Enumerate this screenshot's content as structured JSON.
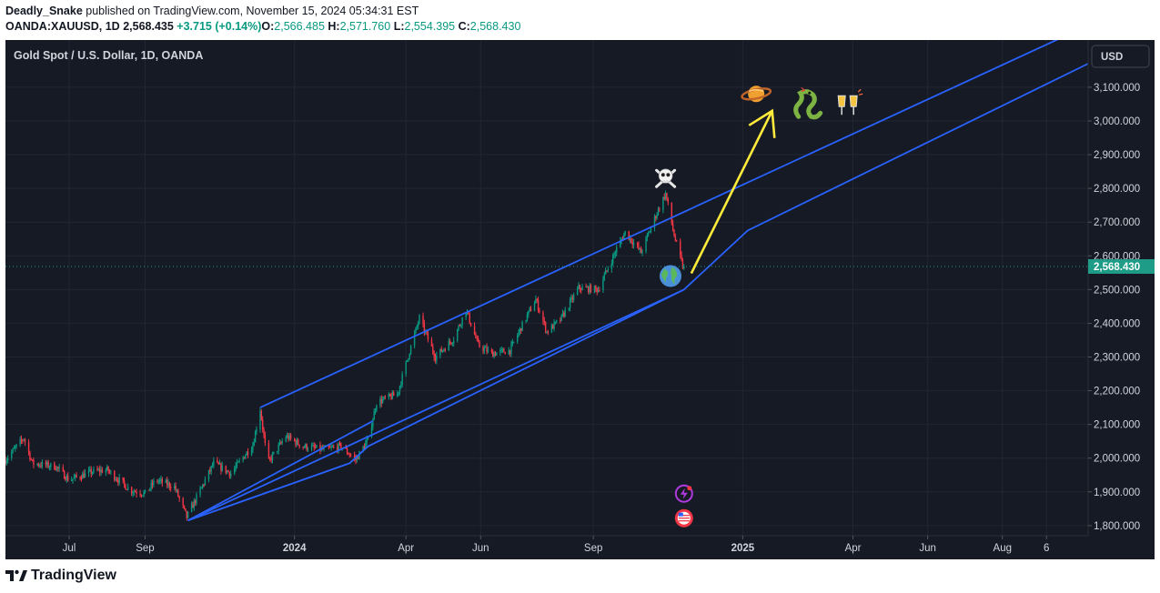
{
  "header": {
    "author": "Deadly_Snake",
    "published_text": "published on TradingView.com, November 15, 2024 05:34:31 EST",
    "symbol": "OANDA:XAUUSD, 1D",
    "price": "2,568.435",
    "change": "+3.715 (+0.14%)",
    "open_label": "O:",
    "open": "2,566.485",
    "high_label": "H:",
    "high": "2,571.760",
    "low_label": "L:",
    "low": "2,554.395",
    "close_label": "C:",
    "close": "2,568.430"
  },
  "chart_data": {
    "type": "candlestick",
    "title": "Gold Spot / U.S. Dollar, 1D, OANDA",
    "currency": "USD",
    "last_price_label": "2,568.430",
    "last_price": 2568.43,
    "y_ticks": [
      "1,800.000",
      "1,900.000",
      "2,000.000",
      "2,100.000",
      "2,200.000",
      "2,300.000",
      "2,400.000",
      "2,500.000",
      "2,600.000",
      "2,700.000",
      "2,800.000",
      "2,900.000",
      "3,000.000",
      "3,100.000"
    ],
    "y_tick_values": [
      1800,
      1900,
      2000,
      2100,
      2200,
      2300,
      2400,
      2500,
      2600,
      2700,
      2800,
      2900,
      3000,
      3100
    ],
    "x_ticks": [
      "Jul",
      "Sep",
      "2024",
      "Apr",
      "Jun",
      "Sep",
      "2025",
      "Apr",
      "Jun",
      "Aug",
      "6"
    ],
    "x_tick_dates": [
      "2023-07-01",
      "2023-09-01",
      "2024-01-01",
      "2024-04-01",
      "2024-06-01",
      "2024-09-01",
      "2025-01-01",
      "2025-04-01",
      "2025-06-01",
      "2025-08-01",
      "2025-09-06"
    ],
    "date_range": [
      "2023-05-10",
      "2025-10-10"
    ],
    "price_range": [
      1770,
      3240
    ],
    "price_path": [
      [
        "2023-05-10",
        1995
      ],
      [
        "2023-05-25",
        2060
      ],
      [
        "2023-06-01",
        1985
      ],
      [
        "2023-06-20",
        1975
      ],
      [
        "2023-07-01",
        1935
      ],
      [
        "2023-07-20",
        1960
      ],
      [
        "2023-08-01",
        1965
      ],
      [
        "2023-08-20",
        1905
      ],
      [
        "2023-09-01",
        1895
      ],
      [
        "2023-09-10",
        1935
      ],
      [
        "2023-09-25",
        1915
      ],
      [
        "2023-10-05",
        1825
      ],
      [
        "2023-10-12",
        1875
      ],
      [
        "2023-10-27",
        1985
      ],
      [
        "2023-11-10",
        1955
      ],
      [
        "2023-11-28",
        2040
      ],
      [
        "2023-12-04",
        2145
      ],
      [
        "2023-12-10",
        1985
      ],
      [
        "2023-12-25",
        2065
      ],
      [
        "2024-01-08",
        2035
      ],
      [
        "2024-01-25",
        2025
      ],
      [
        "2024-02-08",
        2035
      ],
      [
        "2024-02-20",
        1995
      ],
      [
        "2024-03-01",
        2055
      ],
      [
        "2024-03-08",
        2165
      ],
      [
        "2024-03-25",
        2190
      ],
      [
        "2024-04-05",
        2330
      ],
      [
        "2024-04-12",
        2415
      ],
      [
        "2024-04-25",
        2300
      ],
      [
        "2024-05-10",
        2355
      ],
      [
        "2024-05-20",
        2440
      ],
      [
        "2024-05-30",
        2335
      ],
      [
        "2024-06-10",
        2310
      ],
      [
        "2024-06-25",
        2320
      ],
      [
        "2024-07-05",
        2395
      ],
      [
        "2024-07-16",
        2470
      ],
      [
        "2024-07-25",
        2375
      ],
      [
        "2024-08-05",
        2410
      ],
      [
        "2024-08-20",
        2505
      ],
      [
        "2024-09-05",
        2500
      ],
      [
        "2024-09-20",
        2620
      ],
      [
        "2024-09-27",
        2670
      ],
      [
        "2024-10-10",
        2610
      ],
      [
        "2024-10-22",
        2720
      ],
      [
        "2024-10-30",
        2785
      ],
      [
        "2024-11-06",
        2660
      ],
      [
        "2024-11-14",
        2555
      ]
    ],
    "trend_lines": [
      {
        "name": "channel-upper",
        "color": "#2962ff",
        "points": [
          [
            "2023-12-04",
            2150
          ],
          [
            "2025-09-20",
            3250
          ]
        ]
      },
      {
        "name": "channel-lower",
        "color": "#2962ff",
        "points": [
          [
            "2023-10-06",
            1815
          ],
          [
            "2024-11-14",
            2500
          ],
          [
            "2025-01-05",
            2675
          ],
          [
            "2025-10-10",
            3170
          ]
        ]
      },
      {
        "name": "support-line",
        "color": "#2962ff",
        "points": [
          [
            "2023-10-06",
            1815
          ],
          [
            "2024-02-15",
            1985
          ],
          [
            "2024-03-01",
            2035
          ],
          [
            "2024-11-14",
            2500
          ]
        ]
      },
      {
        "name": "support-line-2",
        "color": "#2962ff",
        "points": [
          [
            "2023-10-06",
            1815
          ],
          [
            "2024-03-05",
            2110
          ]
        ]
      }
    ],
    "projection_arrow": {
      "color": "#ffeb3b",
      "from": [
        "2024-11-20",
        2548
      ],
      "to": [
        "2025-01-25",
        3030
      ]
    },
    "annotations": [
      {
        "name": "skull-crossbones-icon",
        "date": "2024-10-30",
        "price": 2832
      },
      {
        "name": "earth-globe-icon",
        "date": "2024-11-03",
        "price": 2540
      },
      {
        "name": "ringed-planet-icon",
        "date": "2025-01-12",
        "price": 3080
      },
      {
        "name": "snake-icon",
        "date": "2025-02-23",
        "price": 3045
      },
      {
        "name": "clinking-glasses-icon",
        "date": "2025-03-28",
        "price": 3048
      }
    ],
    "event_icons": [
      {
        "name": "earnings-bolt-icon",
        "date": "2024-11-14",
        "price": 1895
      },
      {
        "name": "us-flag-event-icon",
        "date": "2024-11-14",
        "price": 1822
      }
    ]
  },
  "colors": {
    "background": "#161a25",
    "grid": "#222632",
    "up": "#089981",
    "down": "#f23645",
    "trendline": "#2962ff",
    "arrow": "#ffeb3b",
    "text": "#d1d4dc",
    "last_price": "#1e9c88"
  },
  "footer": {
    "brand": "TradingView"
  }
}
